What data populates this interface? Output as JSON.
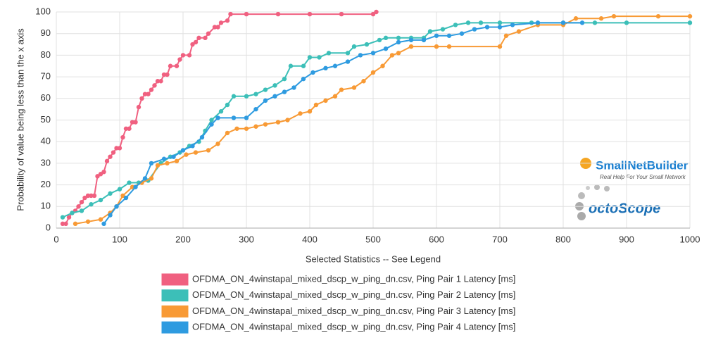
{
  "chart_data": {
    "type": "line",
    "xlabel": "Selected Statistics -- See Legend",
    "ylabel": "Probability of value being less than the x axis",
    "xlim": [
      0,
      1000
    ],
    "xticks": [
      0,
      100,
      200,
      300,
      400,
      500,
      600,
      700,
      800,
      900,
      1000
    ],
    "ylim": [
      0,
      100
    ],
    "yticks": [
      0,
      10,
      20,
      30,
      40,
      50,
      60,
      70,
      80,
      90,
      100
    ],
    "grid": true,
    "series": [
      {
        "name": "OFDMA_ON_4winstapal_mixed_dscp_w_ping_dn.csv, Ping Pair 1 Latency [ms]",
        "color": "#f06080",
        "x": [
          10,
          15,
          20,
          25,
          30,
          35,
          40,
          45,
          50,
          55,
          60,
          65,
          70,
          75,
          80,
          85,
          90,
          95,
          100,
          105,
          110,
          115,
          120,
          125,
          130,
          135,
          140,
          145,
          150,
          155,
          160,
          165,
          170,
          175,
          180,
          190,
          195,
          200,
          210,
          215,
          220,
          225,
          235,
          240,
          250,
          255,
          260,
          270,
          275,
          300,
          350,
          400,
          450,
          500,
          505
        ],
        "values": [
          2,
          2,
          5,
          7,
          8,
          10,
          12,
          14,
          15,
          15,
          15,
          24,
          25,
          26,
          31,
          33,
          35,
          37,
          37,
          42,
          46,
          46,
          49,
          49,
          56,
          60,
          62,
          62,
          64,
          66,
          68,
          68,
          71,
          71,
          75,
          75,
          78,
          80,
          80,
          85,
          86,
          88,
          88,
          90,
          93,
          93,
          95,
          96,
          99,
          99,
          99,
          99,
          99,
          99,
          100
        ]
      },
      {
        "name": "OFDMA_ON_4winstapal_mixed_dscp_w_ping_dn.csv, Ping Pair 2 Latency [ms]",
        "color": "#3cbfb8",
        "x": [
          10,
          25,
          40,
          55,
          70,
          85,
          100,
          115,
          130,
          145,
          165,
          180,
          195,
          210,
          225,
          235,
          245,
          260,
          270,
          280,
          300,
          315,
          330,
          345,
          360,
          370,
          390,
          400,
          415,
          430,
          460,
          470,
          490,
          510,
          520,
          540,
          560,
          580,
          590,
          610,
          630,
          650,
          670,
          700,
          750,
          800,
          850,
          900,
          1000
        ],
        "values": [
          5,
          7,
          8,
          11,
          13,
          16,
          18,
          21,
          21,
          22,
          30,
          33,
          35,
          38,
          40,
          45,
          50,
          54,
          57,
          61,
          61,
          62,
          64,
          66,
          69,
          75,
          75,
          79,
          79,
          81,
          81,
          84,
          85,
          87,
          88,
          88,
          88,
          88,
          91,
          92,
          94,
          95,
          95,
          95,
          95,
          95,
          95,
          95,
          95
        ]
      },
      {
        "name": "OFDMA_ON_4winstapal_mixed_dscp_w_ping_dn.csv, Ping Pair 3 Latency [ms]",
        "color": "#f89a35",
        "x": [
          30,
          50,
          70,
          85,
          95,
          105,
          120,
          135,
          150,
          160,
          175,
          190,
          205,
          220,
          240,
          255,
          270,
          285,
          300,
          315,
          330,
          350,
          365,
          385,
          400,
          410,
          425,
          440,
          450,
          470,
          485,
          500,
          515,
          530,
          540,
          560,
          600,
          620,
          700,
          710,
          730,
          760,
          800,
          820,
          860,
          880,
          950,
          1000
        ],
        "values": [
          2,
          3,
          4,
          7,
          10,
          15,
          19,
          21,
          23,
          29,
          30,
          31,
          34,
          35,
          36,
          39,
          44,
          46,
          46,
          47,
          48,
          49,
          50,
          53,
          54,
          57,
          59,
          61,
          64,
          65,
          68,
          72,
          75,
          80,
          81,
          84,
          84,
          84,
          84,
          89,
          91,
          94,
          94,
          97,
          97,
          98,
          98,
          98
        ]
      },
      {
        "name": "OFDMA_ON_4winstapal_mixed_dscp_w_ping_dn.csv, Ping Pair 4 Latency [ms]",
        "color": "#2e9be0",
        "x": [
          75,
          85,
          95,
          110,
          125,
          140,
          150,
          170,
          185,
          200,
          215,
          230,
          245,
          255,
          280,
          300,
          315,
          330,
          345,
          360,
          375,
          390,
          405,
          425,
          440,
          460,
          480,
          500,
          520,
          540,
          560,
          580,
          600,
          620,
          640,
          660,
          680,
          700,
          720,
          760,
          800,
          830
        ],
        "values": [
          2,
          6,
          10,
          14,
          19,
          23,
          30,
          32,
          33,
          36,
          38,
          42,
          48,
          51,
          51,
          51,
          55,
          59,
          61,
          63,
          65,
          69,
          72,
          74,
          75,
          77,
          80,
          81,
          83,
          86,
          87,
          87,
          89,
          89,
          90,
          92,
          93,
          93,
          94,
          95,
          95,
          95
        ]
      }
    ]
  },
  "logo": {
    "name": "SmallNetBuilder",
    "tagline": "Real Help For Your Small Network",
    "partner": "octoScope"
  }
}
